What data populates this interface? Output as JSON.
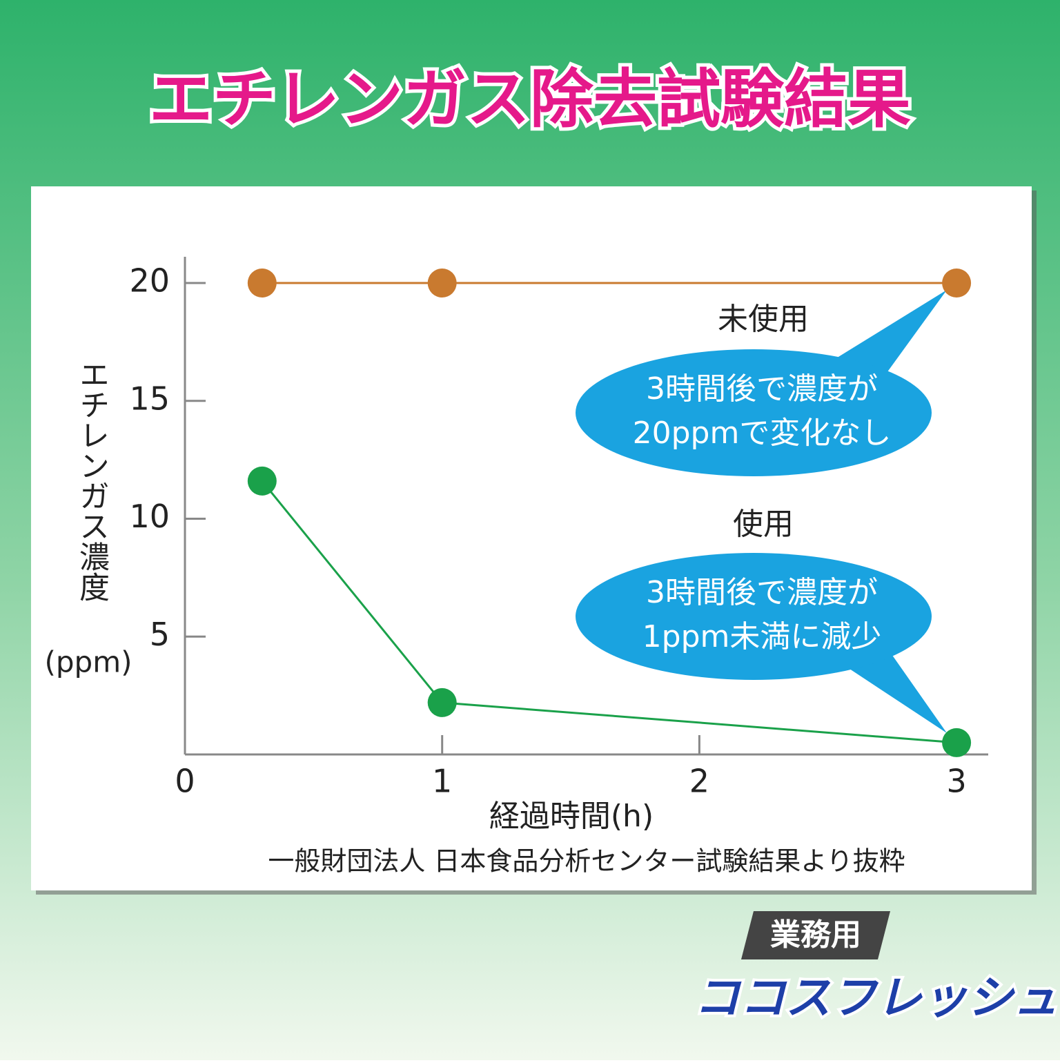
{
  "chart_data": {
    "type": "line",
    "title": "エチレンガス除去試験結果",
    "y_label": "エチレンガス濃度",
    "y_unit": "(ppm)",
    "x_label": "経過時間(h)",
    "source": "一般財団法人 日本食品分析センター試験結果より抜粋",
    "x": [
      0.3,
      1,
      3
    ],
    "series": [
      {
        "name": "未使用",
        "color": "#c97a2f",
        "values": [
          20,
          20,
          20
        ]
      },
      {
        "name": "使用",
        "color": "#1aa14a",
        "values": [
          11.6,
          2.2,
          0.5
        ]
      }
    ],
    "annotations": [
      [
        "3時間後で濃度が",
        "20ppmで変化なし"
      ],
      [
        "3時間後で濃度が",
        "1ppm未満に減少"
      ]
    ],
    "xlim": [
      0,
      3.12
    ],
    "ylim": [
      0,
      21.1
    ],
    "xticks": [
      0,
      1,
      2,
      3
    ],
    "yticks": [
      5,
      10,
      15,
      20
    ]
  },
  "logo": {
    "badge": "業務用",
    "brand": "ココスフレッシュ"
  }
}
